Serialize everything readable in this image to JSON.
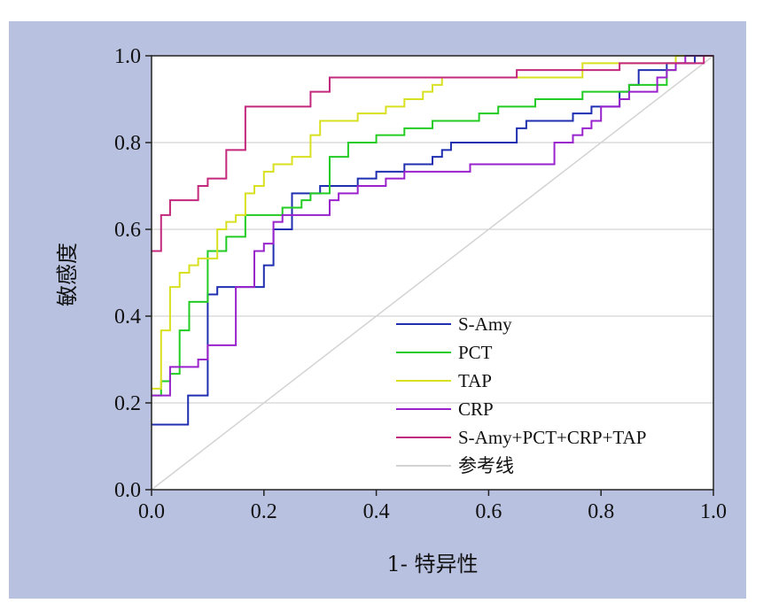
{
  "chart_data": {
    "type": "line",
    "xlabel": "1- 特异性",
    "ylabel": "敏感度",
    "xlim": [
      0,
      1
    ],
    "ylim": [
      0,
      1
    ],
    "x_ticks": [
      "0.0",
      "0.2",
      "0.4",
      "0.6",
      "0.8",
      "1.0"
    ],
    "y_ticks": [
      "0.0",
      "0.2",
      "0.4",
      "0.6",
      "0.8",
      "1.0"
    ],
    "grid": "horizontal",
    "legend_position": "bottom-right",
    "series": [
      {
        "name": "S-Amy",
        "color": "#1f2fb0",
        "points": [
          [
            0,
            0.15
          ],
          [
            0.065,
            0.15
          ],
          [
            0.065,
            0.217
          ],
          [
            0.1,
            0.217
          ],
          [
            0.1,
            0.45
          ],
          [
            0.117,
            0.45
          ],
          [
            0.117,
            0.467
          ],
          [
            0.2,
            0.467
          ],
          [
            0.2,
            0.517
          ],
          [
            0.217,
            0.517
          ],
          [
            0.217,
            0.6
          ],
          [
            0.25,
            0.6
          ],
          [
            0.25,
            0.683
          ],
          [
            0.3,
            0.683
          ],
          [
            0.3,
            0.7
          ],
          [
            0.367,
            0.7
          ],
          [
            0.367,
            0.717
          ],
          [
            0.4,
            0.717
          ],
          [
            0.4,
            0.733
          ],
          [
            0.45,
            0.733
          ],
          [
            0.45,
            0.75
          ],
          [
            0.5,
            0.75
          ],
          [
            0.5,
            0.767
          ],
          [
            0.517,
            0.767
          ],
          [
            0.517,
            0.783
          ],
          [
            0.533,
            0.783
          ],
          [
            0.533,
            0.8
          ],
          [
            0.65,
            0.8
          ],
          [
            0.65,
            0.833
          ],
          [
            0.667,
            0.833
          ],
          [
            0.667,
            0.85
          ],
          [
            0.75,
            0.85
          ],
          [
            0.75,
            0.867
          ],
          [
            0.783,
            0.867
          ],
          [
            0.783,
            0.883
          ],
          [
            0.833,
            0.883
          ],
          [
            0.833,
            0.917
          ],
          [
            0.85,
            0.917
          ],
          [
            0.85,
            0.933
          ],
          [
            0.867,
            0.933
          ],
          [
            0.867,
            0.967
          ],
          [
            0.917,
            0.967
          ],
          [
            0.917,
            0.983
          ],
          [
            0.967,
            0.983
          ],
          [
            0.967,
            1
          ],
          [
            1,
            1
          ]
        ]
      },
      {
        "name": "PCT",
        "color": "#22cc22",
        "points": [
          [
            0,
            0.217
          ],
          [
            0.017,
            0.217
          ],
          [
            0.017,
            0.25
          ],
          [
            0.033,
            0.25
          ],
          [
            0.033,
            0.267
          ],
          [
            0.05,
            0.267
          ],
          [
            0.05,
            0.367
          ],
          [
            0.067,
            0.367
          ],
          [
            0.067,
            0.433
          ],
          [
            0.1,
            0.433
          ],
          [
            0.1,
            0.55
          ],
          [
            0.133,
            0.55
          ],
          [
            0.133,
            0.583
          ],
          [
            0.167,
            0.583
          ],
          [
            0.167,
            0.633
          ],
          [
            0.233,
            0.633
          ],
          [
            0.233,
            0.65
          ],
          [
            0.267,
            0.65
          ],
          [
            0.267,
            0.667
          ],
          [
            0.283,
            0.667
          ],
          [
            0.283,
            0.683
          ],
          [
            0.317,
            0.683
          ],
          [
            0.317,
            0.767
          ],
          [
            0.35,
            0.767
          ],
          [
            0.35,
            0.8
          ],
          [
            0.4,
            0.8
          ],
          [
            0.4,
            0.817
          ],
          [
            0.45,
            0.817
          ],
          [
            0.45,
            0.833
          ],
          [
            0.5,
            0.833
          ],
          [
            0.5,
            0.85
          ],
          [
            0.583,
            0.85
          ],
          [
            0.583,
            0.867
          ],
          [
            0.617,
            0.867
          ],
          [
            0.617,
            0.883
          ],
          [
            0.683,
            0.883
          ],
          [
            0.683,
            0.9
          ],
          [
            0.767,
            0.9
          ],
          [
            0.767,
            0.917
          ],
          [
            0.85,
            0.917
          ],
          [
            0.85,
            0.933
          ],
          [
            0.917,
            0.933
          ],
          [
            0.917,
            0.967
          ],
          [
            0.933,
            0.967
          ],
          [
            0.933,
            1
          ],
          [
            1,
            1
          ]
        ]
      },
      {
        "name": "TAP",
        "color": "#d8e020",
        "points": [
          [
            0,
            0.233
          ],
          [
            0.017,
            0.233
          ],
          [
            0.017,
            0.367
          ],
          [
            0.033,
            0.367
          ],
          [
            0.033,
            0.467
          ],
          [
            0.05,
            0.467
          ],
          [
            0.05,
            0.5
          ],
          [
            0.067,
            0.5
          ],
          [
            0.067,
            0.517
          ],
          [
            0.083,
            0.517
          ],
          [
            0.083,
            0.533
          ],
          [
            0.117,
            0.533
          ],
          [
            0.117,
            0.6
          ],
          [
            0.133,
            0.6
          ],
          [
            0.133,
            0.617
          ],
          [
            0.15,
            0.617
          ],
          [
            0.15,
            0.633
          ],
          [
            0.167,
            0.633
          ],
          [
            0.167,
            0.683
          ],
          [
            0.183,
            0.683
          ],
          [
            0.183,
            0.7
          ],
          [
            0.2,
            0.7
          ],
          [
            0.2,
            0.733
          ],
          [
            0.217,
            0.733
          ],
          [
            0.217,
            0.75
          ],
          [
            0.25,
            0.75
          ],
          [
            0.25,
            0.767
          ],
          [
            0.283,
            0.767
          ],
          [
            0.283,
            0.817
          ],
          [
            0.3,
            0.817
          ],
          [
            0.3,
            0.85
          ],
          [
            0.367,
            0.85
          ],
          [
            0.367,
            0.867
          ],
          [
            0.417,
            0.867
          ],
          [
            0.417,
            0.883
          ],
          [
            0.45,
            0.883
          ],
          [
            0.45,
            0.9
          ],
          [
            0.483,
            0.9
          ],
          [
            0.483,
            0.917
          ],
          [
            0.5,
            0.917
          ],
          [
            0.5,
            0.933
          ],
          [
            0.517,
            0.933
          ],
          [
            0.517,
            0.95
          ],
          [
            0.767,
            0.95
          ],
          [
            0.767,
            0.983
          ],
          [
            0.933,
            0.983
          ],
          [
            0.933,
            1
          ],
          [
            1,
            1
          ]
        ]
      },
      {
        "name": "CRP",
        "color": "#9922cc",
        "points": [
          [
            0,
            0.217
          ],
          [
            0.033,
            0.217
          ],
          [
            0.033,
            0.283
          ],
          [
            0.083,
            0.283
          ],
          [
            0.083,
            0.3
          ],
          [
            0.1,
            0.3
          ],
          [
            0.1,
            0.333
          ],
          [
            0.15,
            0.333
          ],
          [
            0.15,
            0.467
          ],
          [
            0.183,
            0.467
          ],
          [
            0.183,
            0.55
          ],
          [
            0.2,
            0.55
          ],
          [
            0.2,
            0.567
          ],
          [
            0.217,
            0.567
          ],
          [
            0.217,
            0.617
          ],
          [
            0.233,
            0.617
          ],
          [
            0.233,
            0.633
          ],
          [
            0.317,
            0.633
          ],
          [
            0.317,
            0.667
          ],
          [
            0.333,
            0.667
          ],
          [
            0.333,
            0.683
          ],
          [
            0.367,
            0.683
          ],
          [
            0.367,
            0.7
          ],
          [
            0.417,
            0.7
          ],
          [
            0.417,
            0.717
          ],
          [
            0.45,
            0.717
          ],
          [
            0.45,
            0.733
          ],
          [
            0.567,
            0.733
          ],
          [
            0.567,
            0.75
          ],
          [
            0.717,
            0.75
          ],
          [
            0.717,
            0.8
          ],
          [
            0.75,
            0.8
          ],
          [
            0.75,
            0.817
          ],
          [
            0.767,
            0.817
          ],
          [
            0.767,
            0.833
          ],
          [
            0.783,
            0.833
          ],
          [
            0.783,
            0.85
          ],
          [
            0.8,
            0.85
          ],
          [
            0.8,
            0.883
          ],
          [
            0.833,
            0.883
          ],
          [
            0.833,
            0.9
          ],
          [
            0.85,
            0.9
          ],
          [
            0.85,
            0.917
          ],
          [
            0.9,
            0.917
          ],
          [
            0.9,
            0.95
          ],
          [
            0.917,
            0.95
          ],
          [
            0.917,
            0.967
          ],
          [
            0.933,
            0.967
          ],
          [
            0.933,
            0.983
          ],
          [
            0.95,
            0.983
          ],
          [
            0.95,
            1
          ],
          [
            1,
            1
          ]
        ]
      },
      {
        "name": "S-Amy+PCT+CRP+TAP",
        "color": "#c4287c",
        "points": [
          [
            0,
            0.55
          ],
          [
            0.017,
            0.55
          ],
          [
            0.017,
            0.633
          ],
          [
            0.033,
            0.633
          ],
          [
            0.033,
            0.667
          ],
          [
            0.083,
            0.667
          ],
          [
            0.083,
            0.7
          ],
          [
            0.1,
            0.7
          ],
          [
            0.1,
            0.717
          ],
          [
            0.133,
            0.717
          ],
          [
            0.133,
            0.783
          ],
          [
            0.167,
            0.783
          ],
          [
            0.167,
            0.883
          ],
          [
            0.283,
            0.883
          ],
          [
            0.283,
            0.917
          ],
          [
            0.317,
            0.917
          ],
          [
            0.317,
            0.95
          ],
          [
            0.65,
            0.95
          ],
          [
            0.65,
            0.967
          ],
          [
            0.833,
            0.967
          ],
          [
            0.833,
            0.983
          ],
          [
            0.983,
            0.983
          ],
          [
            0.983,
            1
          ],
          [
            1,
            1
          ]
        ]
      },
      {
        "name": "参考线",
        "color": "#d3d3d3",
        "points": [
          [
            0,
            0
          ],
          [
            1,
            1
          ]
        ]
      }
    ]
  }
}
